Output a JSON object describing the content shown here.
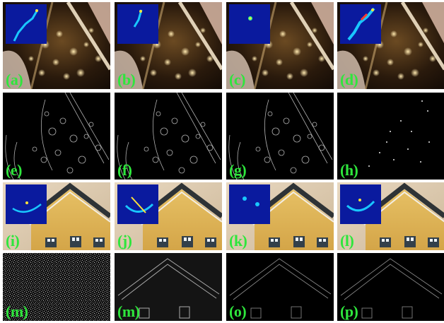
{
  "figure": {
    "panels": [
      {
        "label": "(a)",
        "kind": "photo-fabric",
        "inset": "heatmap"
      },
      {
        "label": "(b)",
        "kind": "photo-fabric",
        "inset": "heatmap"
      },
      {
        "label": "(c)",
        "kind": "photo-fabric",
        "inset": "heatmap"
      },
      {
        "label": "(d)",
        "kind": "photo-fabric",
        "inset": "heatmap"
      },
      {
        "label": "(e)",
        "kind": "edge-map-fabric"
      },
      {
        "label": "(f)",
        "kind": "edge-map-fabric"
      },
      {
        "label": "(g)",
        "kind": "edge-map-fabric"
      },
      {
        "label": "(h)",
        "kind": "sparse-edge-fabric"
      },
      {
        "label": "(i)",
        "kind": "photo-house",
        "inset": "heatmap"
      },
      {
        "label": "(j)",
        "kind": "photo-house",
        "inset": "heatmap"
      },
      {
        "label": "(k)",
        "kind": "photo-house",
        "inset": "heatmap"
      },
      {
        "label": "(l)",
        "kind": "photo-house",
        "inset": "heatmap"
      },
      {
        "label": "(m)",
        "kind": "noise-map"
      },
      {
        "label": "(m)",
        "kind": "edge-map-house"
      },
      {
        "label": "(o)",
        "kind": "edge-map-house-sparse"
      },
      {
        "label": "(p)",
        "kind": "edge-map-house-sparse"
      }
    ],
    "colors": {
      "label": "#2ee63c",
      "inset_bg": "#0a1a9e"
    }
  }
}
